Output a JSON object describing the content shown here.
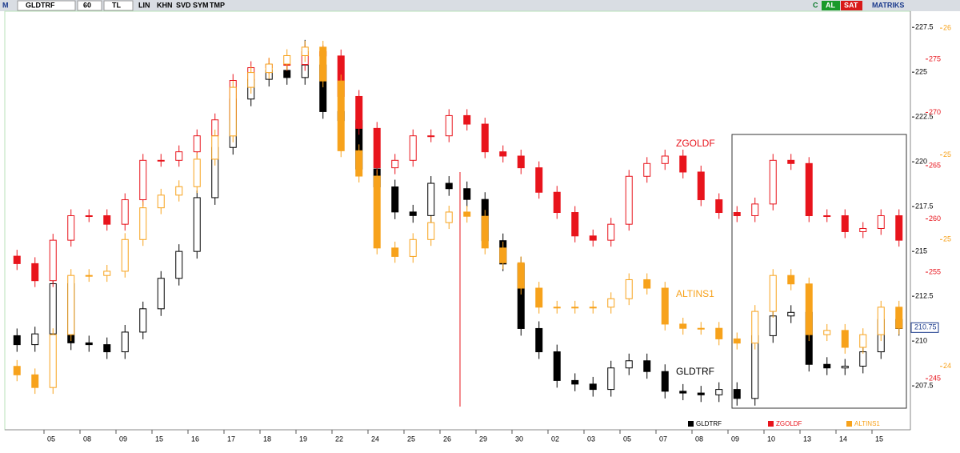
{
  "toolbar": {
    "logo": "M",
    "symbol": "GLDTRF",
    "period": "60",
    "currency": "TL",
    "buttons": [
      "LIN",
      "KHN",
      "SVD",
      "SYM",
      "TMP"
    ],
    "right": [
      "C",
      "AL",
      "SAT",
      "MATRIKS"
    ]
  },
  "chart_data": {
    "type": "candlestick",
    "categories": [
      null,
      "05",
      "08",
      "09",
      "15",
      "16",
      "17",
      "18",
      "19",
      "22",
      "24",
      "25",
      "26",
      "29",
      "30",
      "02",
      "03",
      "05",
      "07",
      "08",
      "09",
      "10",
      "13",
      "14",
      "15"
    ],
    "ylim": [
      205.05,
      228.4
    ],
    "yticks": [
      207.5,
      210,
      212.5,
      215,
      217.5,
      220,
      222.5,
      225,
      227.5
    ],
    "y_marker": 210.75,
    "y2lim": [
      240.2,
      279.5
    ],
    "y2ticks": [
      245,
      255,
      260,
      265,
      270,
      275
    ],
    "y3lim": [
      24.1,
      26.08
    ],
    "y3ticks": [
      {
        "value": 24.4,
        "label": "24"
      },
      {
        "value": 25,
        "label": "25"
      },
      {
        "value": 25.4,
        "label": "25"
      },
      {
        "value": 26,
        "label": "26"
      }
    ],
    "series": [
      {
        "name": "GLDTRF",
        "color": "#000000",
        "axis": "y",
        "open": [
          210.3,
          209.8,
          210.4,
          213.2,
          209.9,
          209.8,
          209.4,
          210.5,
          211.8,
          213.5,
          215.0,
          218.0,
          220.8,
          223.5,
          224.6,
          225.1,
          224.7,
          225.4,
          222.8,
          222.3,
          219.6,
          218.6,
          217.2,
          217.0,
          218.8,
          218.5,
          217.9,
          215.6,
          214.3,
          210.7,
          209.4,
          207.8,
          207.6,
          207.3,
          208.5,
          208.9,
          208.3,
          207.2,
          207.1,
          207.0,
          207.3,
          206.8,
          210.3,
          211.4,
          211.6,
          208.7,
          208.5,
          208.6,
          209.4,
          211.2
        ],
        "high": [
          210.7,
          210.8,
          213.6,
          213.6,
          210.3,
          210.2,
          210.9,
          212.2,
          213.9,
          215.4,
          218.4,
          221.2,
          223.9,
          225.0,
          225.5,
          225.5,
          226.8,
          225.8,
          223.2,
          222.7,
          220.0,
          219.0,
          217.6,
          219.2,
          219.2,
          218.9,
          218.3,
          216.0,
          214.7,
          211.1,
          209.8,
          208.2,
          208.0,
          208.9,
          209.3,
          209.3,
          208.7,
          207.6,
          207.5,
          207.7,
          207.7,
          210.7,
          211.8,
          212.0,
          212.0,
          209.1,
          209.0,
          209.8,
          211.6,
          211.6
        ],
        "low": [
          209.4,
          209.4,
          210.0,
          209.5,
          209.4,
          209.0,
          209.0,
          210.1,
          211.4,
          213.1,
          214.6,
          217.6,
          220.4,
          223.1,
          224.2,
          224.3,
          224.3,
          222.4,
          221.9,
          219.2,
          218.2,
          216.8,
          216.6,
          216.6,
          218.1,
          217.5,
          215.2,
          213.9,
          210.3,
          209.0,
          207.4,
          207.2,
          206.9,
          206.9,
          208.1,
          207.9,
          206.8,
          206.7,
          206.6,
          206.6,
          206.4,
          206.4,
          209.9,
          211.0,
          208.3,
          208.1,
          208.1,
          208.2,
          209.0,
          210.3
        ],
        "close": [
          209.8,
          210.4,
          213.2,
          209.9,
          209.8,
          209.4,
          210.5,
          211.8,
          213.5,
          215.0,
          218.0,
          220.8,
          223.5,
          224.6,
          225.1,
          224.7,
          225.4,
          222.8,
          222.3,
          219.6,
          218.6,
          217.2,
          217.0,
          218.8,
          218.5,
          217.9,
          215.6,
          214.3,
          210.7,
          209.4,
          207.8,
          207.6,
          207.3,
          208.5,
          208.9,
          208.3,
          207.2,
          207.1,
          207.0,
          207.3,
          206.8,
          210.3,
          211.4,
          211.6,
          208.7,
          208.5,
          208.6,
          209.4,
          211.2,
          210.7
        ]
      },
      {
        "name": "ZGOLDF",
        "color": "#e8141c",
        "axis": "y2",
        "open": [
          256.5,
          255.8,
          254.2,
          258.0,
          260.3,
          260.3,
          259.5,
          261.8,
          265.5,
          265.5,
          266.3,
          267.8,
          269.3,
          273.0,
          274.2,
          274.5,
          274.5,
          275.7,
          275.3,
          271.5,
          268.5,
          264.8,
          265.5,
          267.8,
          267.8,
          269.7,
          268.9,
          266.3,
          265.9,
          264.8,
          262.5,
          260.6,
          258.4,
          258.0,
          259.5,
          264.0,
          265.2,
          265.9,
          264.4,
          261.8,
          260.6,
          260.3,
          261.4,
          265.5,
          265.2,
          260.3,
          260.3,
          258.8,
          259.1,
          260.3
        ],
        "high": [
          257.1,
          256.4,
          258.6,
          260.9,
          260.9,
          260.9,
          262.4,
          266.1,
          266.1,
          266.9,
          268.4,
          269.9,
          273.6,
          274.8,
          275.1,
          275.1,
          276.3,
          276.3,
          275.9,
          272.1,
          269.1,
          266.1,
          268.4,
          268.4,
          270.3,
          270.3,
          269.5,
          266.9,
          266.5,
          265.4,
          263.1,
          261.2,
          259.0,
          260.1,
          264.6,
          265.8,
          266.5,
          266.5,
          265.0,
          262.4,
          261.2,
          262.0,
          266.1,
          266.1,
          265.8,
          260.9,
          260.9,
          259.7,
          260.9,
          260.9
        ],
        "low": [
          255.2,
          253.6,
          253.6,
          257.4,
          259.7,
          258.9,
          258.9,
          261.2,
          264.9,
          264.9,
          265.7,
          267.2,
          268.7,
          272.4,
          273.6,
          273.9,
          273.9,
          274.7,
          270.9,
          267.9,
          264.2,
          264.2,
          264.9,
          267.2,
          267.2,
          268.3,
          265.7,
          265.3,
          264.2,
          261.9,
          260.0,
          257.8,
          257.4,
          257.4,
          258.9,
          263.4,
          264.6,
          263.8,
          261.2,
          260.0,
          259.7,
          259.7,
          260.8,
          264.6,
          259.7,
          259.7,
          258.2,
          258.2,
          258.5,
          257.4
        ],
        "close": [
          255.8,
          254.2,
          258.0,
          260.3,
          260.3,
          259.5,
          261.8,
          265.5,
          265.5,
          266.3,
          267.8,
          269.3,
          273.0,
          274.2,
          274.5,
          274.5,
          275.7,
          275.3,
          271.5,
          268.5,
          264.8,
          265.5,
          267.8,
          267.8,
          269.7,
          268.9,
          266.3,
          265.9,
          264.8,
          262.5,
          260.6,
          258.4,
          258.0,
          259.5,
          264.0,
          265.2,
          265.9,
          264.4,
          261.8,
          260.6,
          260.3,
          261.4,
          265.5,
          265.2,
          260.3,
          260.3,
          258.8,
          259.1,
          260.3,
          258.0
        ]
      },
      {
        "name": "ALTINS1",
        "color": "#f7a21b",
        "axis": "y3",
        "open": [
          24.4,
          24.36,
          24.3,
          24.55,
          24.83,
          24.83,
          24.85,
          25.0,
          25.15,
          25.21,
          25.25,
          25.38,
          25.49,
          25.72,
          25.79,
          25.83,
          25.87,
          25.91,
          25.75,
          25.42,
          25.3,
          24.96,
          24.92,
          25.0,
          25.08,
          25.13,
          25.11,
          24.96,
          24.89,
          24.77,
          24.68,
          24.68,
          24.68,
          24.68,
          24.72,
          24.81,
          24.77,
          24.6,
          24.58,
          24.58,
          24.53,
          24.51,
          24.66,
          24.83,
          24.79,
          24.55,
          24.57,
          24.49,
          24.55,
          24.68
        ],
        "high": [
          24.43,
          24.39,
          24.58,
          24.86,
          24.86,
          24.88,
          25.03,
          25.18,
          25.24,
          25.28,
          25.41,
          25.52,
          25.75,
          25.82,
          25.86,
          25.9,
          25.94,
          25.94,
          25.78,
          25.45,
          25.33,
          24.99,
          25.03,
          25.11,
          25.16,
          25.16,
          25.14,
          24.99,
          24.92,
          24.8,
          24.71,
          24.71,
          24.71,
          24.75,
          24.84,
          24.84,
          24.8,
          24.63,
          24.61,
          24.61,
          24.56,
          24.69,
          24.86,
          24.86,
          24.82,
          24.6,
          24.6,
          24.58,
          24.71,
          24.71
        ],
        "low": [
          24.33,
          24.27,
          24.27,
          24.52,
          24.8,
          24.8,
          24.82,
          24.97,
          25.12,
          25.18,
          25.22,
          25.35,
          25.46,
          25.69,
          25.76,
          25.8,
          25.84,
          25.72,
          25.39,
          25.27,
          24.93,
          24.89,
          24.89,
          24.97,
          25.05,
          25.08,
          24.93,
          24.86,
          24.74,
          24.65,
          24.65,
          24.65,
          24.65,
          24.65,
          24.69,
          24.74,
          24.57,
          24.55,
          24.55,
          24.5,
          24.48,
          24.48,
          24.63,
          24.76,
          24.52,
          24.52,
          24.46,
          24.46,
          24.52,
          24.55
        ],
        "close": [
          24.36,
          24.3,
          24.55,
          24.83,
          24.83,
          24.85,
          25.0,
          25.15,
          25.21,
          25.25,
          25.38,
          25.49,
          25.72,
          25.79,
          25.83,
          25.87,
          25.91,
          25.75,
          25.42,
          25.3,
          24.96,
          24.92,
          25.0,
          25.08,
          25.13,
          25.11,
          24.96,
          24.89,
          24.77,
          24.68,
          24.68,
          24.68,
          24.68,
          24.72,
          24.81,
          24.77,
          24.6,
          24.58,
          24.58,
          24.53,
          24.51,
          24.66,
          24.83,
          24.79,
          24.55,
          24.57,
          24.49,
          24.55,
          24.68,
          24.58
        ]
      }
    ]
  }
}
